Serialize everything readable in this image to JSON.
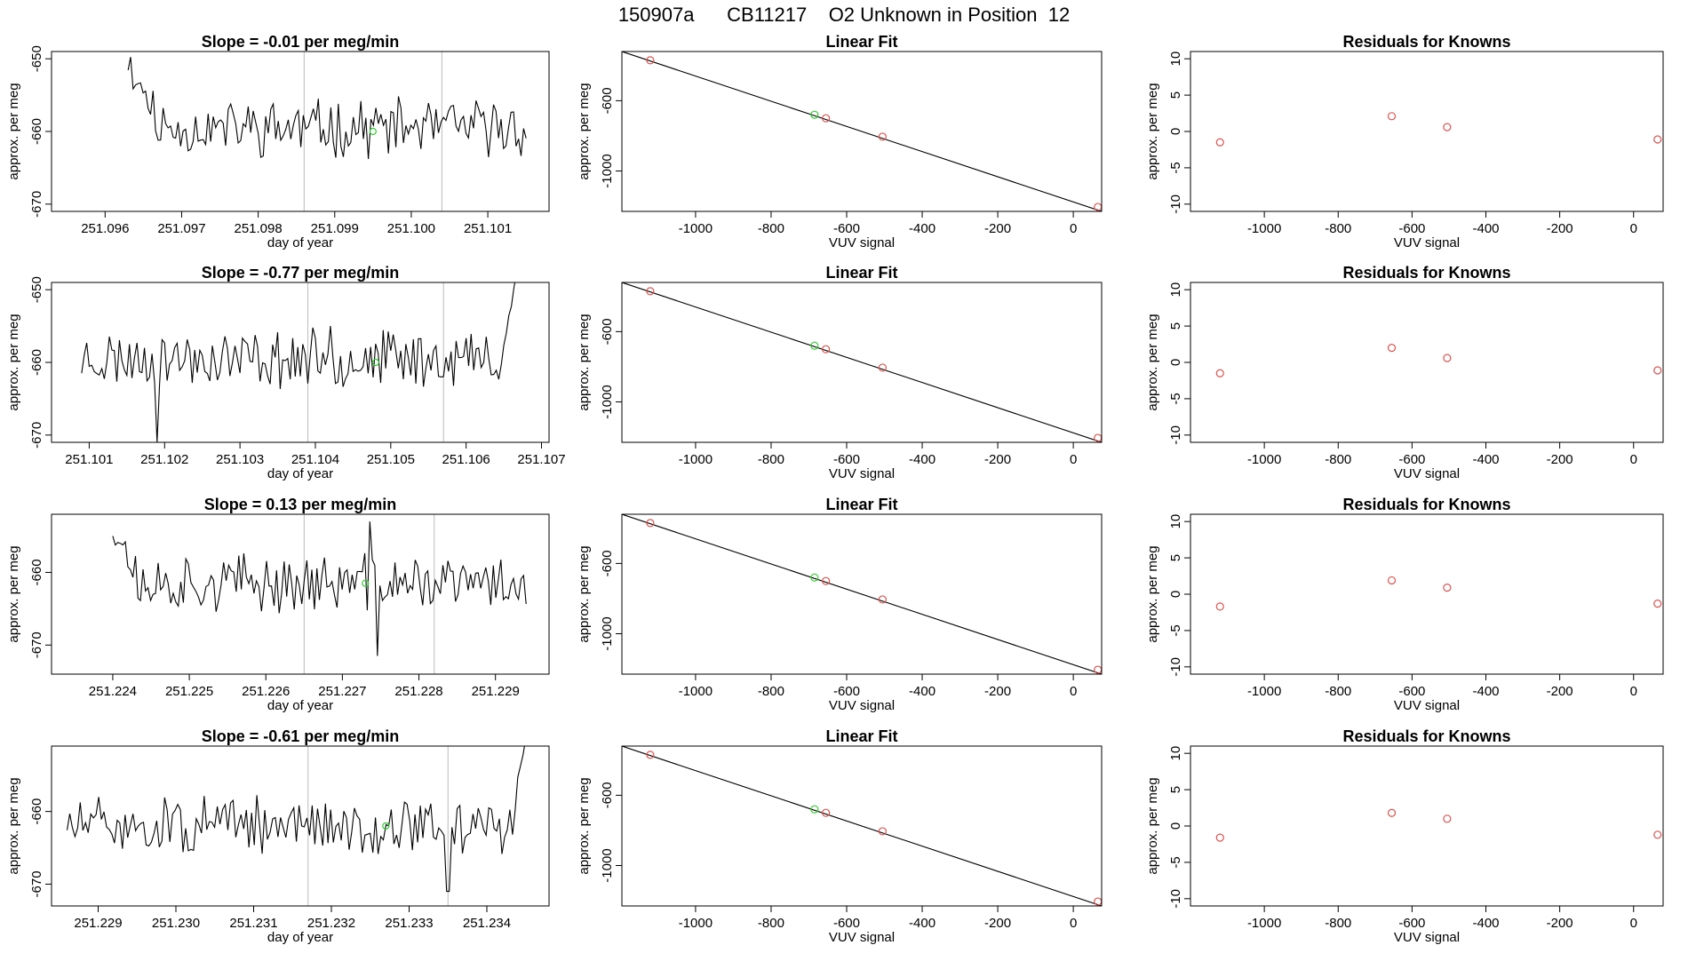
{
  "figure": {
    "title": "150907a      CB11217    O2 Unknown in Position  12"
  },
  "colors": {
    "line": "#000000",
    "frame": "#000000",
    "vline": "#bbbbbb",
    "point_red": "#d9534f",
    "point_green": "#33cc33"
  },
  "chart_data": [
    {
      "panel": "timeseries-1",
      "type": "line",
      "title": "Slope =  -0.01  per meg/min",
      "xlabel": "day of year",
      "ylabel": "approx. per meg",
      "xlim": [
        251.0953,
        251.1018
      ],
      "ylim": [
        -671,
        -649
      ],
      "xticks": [
        251.096,
        251.097,
        251.098,
        251.099,
        251.1,
        251.101
      ],
      "xtick_labels": [
        "251.096",
        "251.097",
        "251.098",
        "251.099",
        "251.100",
        "251.101"
      ],
      "yticks": [
        -650,
        -660,
        -670
      ],
      "ytick_labels": [
        "-650",
        "-660",
        "-670"
      ],
      "vlines": [
        251.0986,
        251.1004
      ],
      "x_range": [
        251.0963,
        251.1015
      ],
      "n_points": 160,
      "y_center": -659.5,
      "seed": 11,
      "start_high": -648,
      "start_len": 14,
      "end_high": null,
      "end_len": 0,
      "spikes": [],
      "green_point": {
        "x": 251.0995,
        "y": -660
      }
    },
    {
      "panel": "timeseries-2",
      "type": "line",
      "title": "Slope =  -0.77  per meg/min",
      "xlabel": "day of year",
      "ylabel": "approx. per meg",
      "xlim": [
        251.1005,
        251.1071
      ],
      "ylim": [
        -671,
        -649
      ],
      "xticks": [
        251.101,
        251.102,
        251.103,
        251.104,
        251.105,
        251.106,
        251.107
      ],
      "xtick_labels": [
        "251.101",
        "251.102",
        "251.103",
        "251.104",
        "251.105",
        "251.106",
        "251.107"
      ],
      "yticks": [
        -650,
        -660,
        -670
      ],
      "ytick_labels": [
        "-650",
        "-660",
        "-670"
      ],
      "vlines": [
        251.1039,
        251.1057
      ],
      "x_range": [
        251.1009,
        251.1067
      ],
      "n_points": 175,
      "y_center": -659.5,
      "seed": 23,
      "start_high": null,
      "start_len": 0,
      "end_high": -646,
      "end_len": 8,
      "spikes": [
        [
          0.17,
          -671
        ],
        [
          0.57,
          -655
        ]
      ],
      "green_point": {
        "x": 251.1048,
        "y": -660
      }
    },
    {
      "panel": "timeseries-3",
      "type": "line",
      "title": "Slope =  0.13  per meg/min",
      "xlabel": "day of year",
      "ylabel": "approx. per meg",
      "xlim": [
        251.2232,
        251.2297
      ],
      "ylim": [
        -674,
        -652
      ],
      "xticks": [
        251.224,
        251.225,
        251.226,
        251.227,
        251.228,
        251.229
      ],
      "xtick_labels": [
        "251.224",
        "251.225",
        "251.226",
        "251.227",
        "251.228",
        "251.229"
      ],
      "yticks": [
        -660,
        -670
      ],
      "ytick_labels": [
        "-660",
        "-670"
      ],
      "vlines": [
        251.2265,
        251.2282
      ],
      "x_range": [
        251.224,
        251.2294
      ],
      "n_points": 165,
      "y_center": -661.5,
      "seed": 37,
      "start_high": -651,
      "start_len": 10,
      "end_high": null,
      "end_len": 0,
      "spikes": [
        [
          0.62,
          -653
        ],
        [
          0.64,
          -671.5
        ]
      ],
      "green_point": {
        "x": 251.2273,
        "y": -661.5
      }
    },
    {
      "panel": "timeseries-4",
      "type": "line",
      "title": "Slope =  -0.61  per meg/min",
      "xlabel": "day of year",
      "ylabel": "approx. per meg",
      "xlim": [
        251.2284,
        251.2348
      ],
      "ylim": [
        -673,
        -651
      ],
      "xticks": [
        251.229,
        251.23,
        251.231,
        251.232,
        251.233,
        251.234
      ],
      "xtick_labels": [
        "251.229",
        "251.230",
        "251.231",
        "251.232",
        "251.233",
        "251.234"
      ],
      "yticks": [
        -660,
        -670
      ],
      "ytick_labels": [
        "-660",
        "-670"
      ],
      "vlines": [
        251.2317,
        251.2335
      ],
      "x_range": [
        251.2286,
        251.2345
      ],
      "n_points": 175,
      "y_center": -662,
      "seed": 51,
      "start_high": null,
      "start_len": 0,
      "end_high": -650,
      "end_len": 6,
      "spikes": [
        [
          0.83,
          -671
        ],
        [
          0.835,
          -671
        ]
      ],
      "green_point": {
        "x": 251.2327,
        "y": -662
      }
    },
    {
      "panel": "linear-fit-1",
      "type": "scatter",
      "title": "Linear Fit",
      "xlabel": "VUV signal",
      "ylabel": "approx. per meg",
      "xlim": [
        -1195,
        75
      ],
      "ylim": [
        -1230,
        -320
      ],
      "xticks": [
        -1000,
        -800,
        -600,
        -400,
        -200,
        0
      ],
      "xtick_labels": [
        "-1000",
        "-800",
        "-600",
        "-400",
        "-200",
        "0"
      ],
      "yticks": [
        -600,
        -1000
      ],
      "ytick_labels": [
        "-600",
        "-1000"
      ],
      "fit_line": {
        "x": [
          -1195,
          75
        ],
        "y": [
          -320,
          -1230
        ]
      },
      "red_points": [
        {
          "x": -1120,
          "y": -370
        },
        {
          "x": -655,
          "y": -700
        },
        {
          "x": -505,
          "y": -805
        },
        {
          "x": 65,
          "y": -1205
        }
      ],
      "green_points": [
        {
          "x": -685,
          "y": -680
        }
      ]
    },
    {
      "panel": "linear-fit-2",
      "type": "scatter",
      "title": "Linear Fit",
      "xlabel": "VUV signal",
      "ylabel": "approx. per meg",
      "xlim": [
        -1195,
        75
      ],
      "ylim": [
        -1230,
        -320
      ],
      "xticks": [
        -1000,
        -800,
        -600,
        -400,
        -200,
        0
      ],
      "xtick_labels": [
        "-1000",
        "-800",
        "-600",
        "-400",
        "-200",
        "0"
      ],
      "yticks": [
        -600,
        -1000
      ],
      "ytick_labels": [
        "-600",
        "-1000"
      ],
      "fit_line": {
        "x": [
          -1195,
          75
        ],
        "y": [
          -320,
          -1230
        ]
      },
      "red_points": [
        {
          "x": -1120,
          "y": -370
        },
        {
          "x": -655,
          "y": -700
        },
        {
          "x": -505,
          "y": -805
        },
        {
          "x": 65,
          "y": -1205
        }
      ],
      "green_points": [
        {
          "x": -685,
          "y": -680
        }
      ]
    },
    {
      "panel": "linear-fit-3",
      "type": "scatter",
      "title": "Linear Fit",
      "xlabel": "VUV signal",
      "ylabel": "approx. per meg",
      "xlim": [
        -1195,
        75
      ],
      "ylim": [
        -1230,
        -320
      ],
      "xticks": [
        -1000,
        -800,
        -600,
        -400,
        -200,
        0
      ],
      "xtick_labels": [
        "-1000",
        "-800",
        "-600",
        "-400",
        "-200",
        "0"
      ],
      "yticks": [
        -600,
        -1000
      ],
      "ytick_labels": [
        "-600",
        "-1000"
      ],
      "fit_line": {
        "x": [
          -1195,
          75
        ],
        "y": [
          -320,
          -1230
        ]
      },
      "red_points": [
        {
          "x": -1120,
          "y": -370
        },
        {
          "x": -655,
          "y": -700
        },
        {
          "x": -505,
          "y": -805
        },
        {
          "x": 65,
          "y": -1205
        }
      ],
      "green_points": [
        {
          "x": -685,
          "y": -680
        }
      ]
    },
    {
      "panel": "linear-fit-4",
      "type": "scatter",
      "title": "Linear Fit",
      "xlabel": "VUV signal",
      "ylabel": "approx. per meg",
      "xlim": [
        -1195,
        75
      ],
      "ylim": [
        -1230,
        -320
      ],
      "xticks": [
        -1000,
        -800,
        -600,
        -400,
        -200,
        0
      ],
      "xtick_labels": [
        "-1000",
        "-800",
        "-600",
        "-400",
        "-200",
        "0"
      ],
      "yticks": [
        -600,
        -1000
      ],
      "ytick_labels": [
        "-600",
        "-1000"
      ],
      "fit_line": {
        "x": [
          -1195,
          75
        ],
        "y": [
          -320,
          -1230
        ]
      },
      "red_points": [
        {
          "x": -1120,
          "y": -370
        },
        {
          "x": -655,
          "y": -700
        },
        {
          "x": -505,
          "y": -805
        },
        {
          "x": 65,
          "y": -1205
        }
      ],
      "green_points": [
        {
          "x": -685,
          "y": -680
        }
      ]
    },
    {
      "panel": "residuals-1",
      "type": "scatter",
      "title": "Residuals for Knowns",
      "xlabel": "VUV signal",
      "ylabel": "approx. per meg",
      "xlim": [
        -1200,
        80
      ],
      "ylim": [
        -11,
        11
      ],
      "xticks": [
        -1000,
        -800,
        -600,
        -400,
        -200,
        0
      ],
      "xtick_labels": [
        "-1000",
        "-800",
        "-600",
        "-400",
        "-200",
        "0"
      ],
      "yticks": [
        10,
        5,
        0,
        -5,
        -10
      ],
      "ytick_labels": [
        "10",
        "5",
        "0",
        "-5",
        "-10"
      ],
      "red_points": [
        {
          "x": -1120,
          "y": -1.5
        },
        {
          "x": -655,
          "y": 2.1
        },
        {
          "x": -505,
          "y": 0.6
        },
        {
          "x": 65,
          "y": -1.1
        }
      ],
      "green_points": []
    },
    {
      "panel": "residuals-2",
      "type": "scatter",
      "title": "Residuals for Knowns",
      "xlabel": "VUV signal",
      "ylabel": "approx. per meg",
      "xlim": [
        -1200,
        80
      ],
      "ylim": [
        -11,
        11
      ],
      "xticks": [
        -1000,
        -800,
        -600,
        -400,
        -200,
        0
      ],
      "xtick_labels": [
        "-1000",
        "-800",
        "-600",
        "-400",
        "-200",
        "0"
      ],
      "yticks": [
        10,
        5,
        0,
        -5,
        -10
      ],
      "ytick_labels": [
        "10",
        "5",
        "0",
        "-5",
        "-10"
      ],
      "red_points": [
        {
          "x": -1120,
          "y": -1.5
        },
        {
          "x": -655,
          "y": 2.0
        },
        {
          "x": -505,
          "y": 0.6
        },
        {
          "x": 65,
          "y": -1.1
        }
      ],
      "green_points": []
    },
    {
      "panel": "residuals-3",
      "type": "scatter",
      "title": "Residuals for Knowns",
      "xlabel": "VUV signal",
      "ylabel": "approx. per meg",
      "xlim": [
        -1200,
        80
      ],
      "ylim": [
        -11,
        11
      ],
      "xticks": [
        -1000,
        -800,
        -600,
        -400,
        -200,
        0
      ],
      "xtick_labels": [
        "-1000",
        "-800",
        "-600",
        "-400",
        "-200",
        "0"
      ],
      "yticks": [
        10,
        5,
        0,
        -5,
        -10
      ],
      "ytick_labels": [
        "10",
        "5",
        "0",
        "-5",
        "-10"
      ],
      "red_points": [
        {
          "x": -1120,
          "y": -1.7
        },
        {
          "x": -655,
          "y": 1.9
        },
        {
          "x": -505,
          "y": 0.9
        },
        {
          "x": 65,
          "y": -1.3
        }
      ],
      "green_points": []
    },
    {
      "panel": "residuals-4",
      "type": "scatter",
      "title": "Residuals for Knowns",
      "xlabel": "VUV signal",
      "ylabel": "approx. per meg",
      "xlim": [
        -1200,
        80
      ],
      "ylim": [
        -11,
        11
      ],
      "xticks": [
        -1000,
        -800,
        -600,
        -400,
        -200,
        0
      ],
      "xtick_labels": [
        "-1000",
        "-800",
        "-600",
        "-400",
        "-200",
        "0"
      ],
      "yticks": [
        10,
        5,
        0,
        -5,
        -10
      ],
      "ytick_labels": [
        "10",
        "5",
        "0",
        "-5",
        "-10"
      ],
      "red_points": [
        {
          "x": -1120,
          "y": -1.6
        },
        {
          "x": -655,
          "y": 1.8
        },
        {
          "x": -505,
          "y": 1.0
        },
        {
          "x": 65,
          "y": -1.2
        }
      ],
      "green_points": []
    }
  ]
}
